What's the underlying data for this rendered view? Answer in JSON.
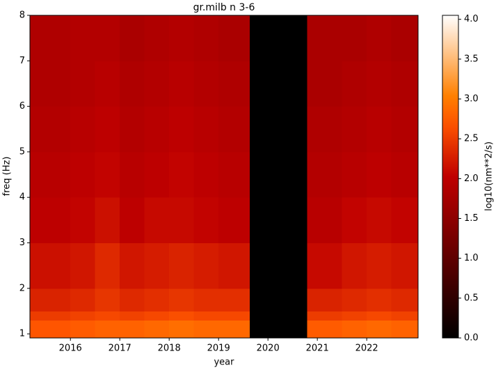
{
  "chart_data": {
    "type": "heatmap",
    "title": "gr.milb n 3-6",
    "x_label": "year",
    "y_label": "freq (Hz)",
    "colorbar_label": "log10(nm**2/s)",
    "colormap": "gist_heat",
    "xlim": [
      2015.18,
      2023.04
    ],
    "ylim": [
      0.91,
      8
    ],
    "xticks": [
      2016,
      2017,
      2018,
      2019,
      2020,
      2021,
      2022
    ],
    "yticks": [
      1,
      2,
      3,
      4,
      5,
      6,
      7,
      8
    ],
    "clim": [
      0,
      4.05
    ],
    "cticks": [
      {
        "value": 0,
        "label": "0.0"
      },
      0.5,
      {
        "value": 1,
        "label": "1.0"
      },
      1.5,
      {
        "value": 2,
        "label": "2.0"
      },
      2.5,
      {
        "value": 3,
        "label": "3.0"
      },
      3.5,
      {
        "value": 4,
        "label": "4.0"
      }
    ],
    "x_bins": [
      2015.18,
      2016,
      2016.5,
      2017,
      2017.5,
      2018,
      2018.5,
      2019,
      2019.63,
      2020.79,
      2021.5,
      2022,
      2022.5,
      2023.04
    ],
    "y_bins": [
      0.91,
      1.3,
      1.5,
      2,
      3,
      4,
      5,
      6,
      7,
      8
    ],
    "z": [
      [
        2.7,
        2.75,
        2.8,
        2.8,
        2.85,
        2.9,
        2.85,
        2.85,
        0,
        2.75,
        2.8,
        2.85,
        2.8
      ],
      [
        2.5,
        2.55,
        2.6,
        2.55,
        2.6,
        2.65,
        2.6,
        2.6,
        0,
        2.5,
        2.55,
        2.6,
        2.55
      ],
      [
        2.3,
        2.35,
        2.45,
        2.35,
        2.4,
        2.45,
        2.4,
        2.4,
        0,
        2.3,
        2.35,
        2.4,
        2.35
      ],
      [
        2.15,
        2.2,
        2.35,
        2.2,
        2.25,
        2.3,
        2.25,
        2.2,
        0,
        2.1,
        2.2,
        2.25,
        2.2
      ],
      [
        2.0,
        2.05,
        2.15,
        2.0,
        2.1,
        2.1,
        2.05,
        2.0,
        0,
        1.95,
        2.05,
        2.1,
        2.05
      ],
      [
        1.95,
        2.0,
        2.05,
        1.95,
        2.0,
        2.05,
        2.0,
        1.95,
        0,
        1.9,
        1.95,
        2.0,
        1.95
      ],
      [
        1.9,
        1.95,
        2.0,
        1.9,
        1.95,
        2.0,
        1.95,
        1.9,
        0,
        1.85,
        1.9,
        1.95,
        1.9
      ],
      [
        1.85,
        1.9,
        1.95,
        1.85,
        1.9,
        1.95,
        1.9,
        1.85,
        0,
        1.8,
        1.85,
        1.9,
        1.85
      ],
      [
        1.85,
        1.9,
        1.9,
        1.8,
        1.85,
        1.9,
        1.85,
        1.8,
        0,
        1.8,
        1.8,
        1.85,
        1.8
      ]
    ]
  }
}
